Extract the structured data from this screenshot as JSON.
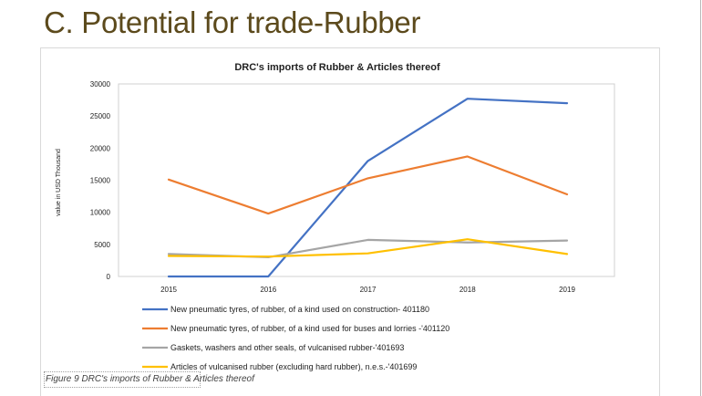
{
  "slide": {
    "title": "C. Potential for trade-Rubber",
    "caption": "Figure 9 DRC's imports of Rubber & Articles thereof"
  },
  "chart_data": {
    "type": "line",
    "title": "DRC's imports of Rubber & Articles thereof",
    "xlabel": "",
    "ylabel": "value in USD Thousand",
    "ylim": [
      0,
      30000
    ],
    "yticks": [
      0,
      5000,
      10000,
      15000,
      20000,
      25000,
      30000
    ],
    "categories": [
      "2015",
      "2016",
      "2017",
      "2018",
      "2019"
    ],
    "grid": false,
    "legend_position": "bottom",
    "series": [
      {
        "name": "New pneumatic tyres, of rubber, of a kind used on construction- 401180",
        "color": "#4472c4",
        "values": [
          0,
          0,
          18000,
          27700,
          27000
        ]
      },
      {
        "name": "New pneumatic tyres, of rubber, of a kind used for buses and lorries -'401120",
        "color": "#ed7d31",
        "values": [
          15100,
          9800,
          15300,
          18700,
          12800
        ]
      },
      {
        "name": "Gaskets, washers and other seals, of vulcanised rubber-'401693",
        "color": "#a5a5a5",
        "values": [
          3500,
          3000,
          5700,
          5300,
          5600
        ]
      },
      {
        "name": "Articles of vulcanised rubber (excluding hard rubber), n.e.s.-'401699",
        "color": "#ffc000",
        "values": [
          3200,
          3100,
          3600,
          5800,
          3500
        ]
      }
    ]
  }
}
